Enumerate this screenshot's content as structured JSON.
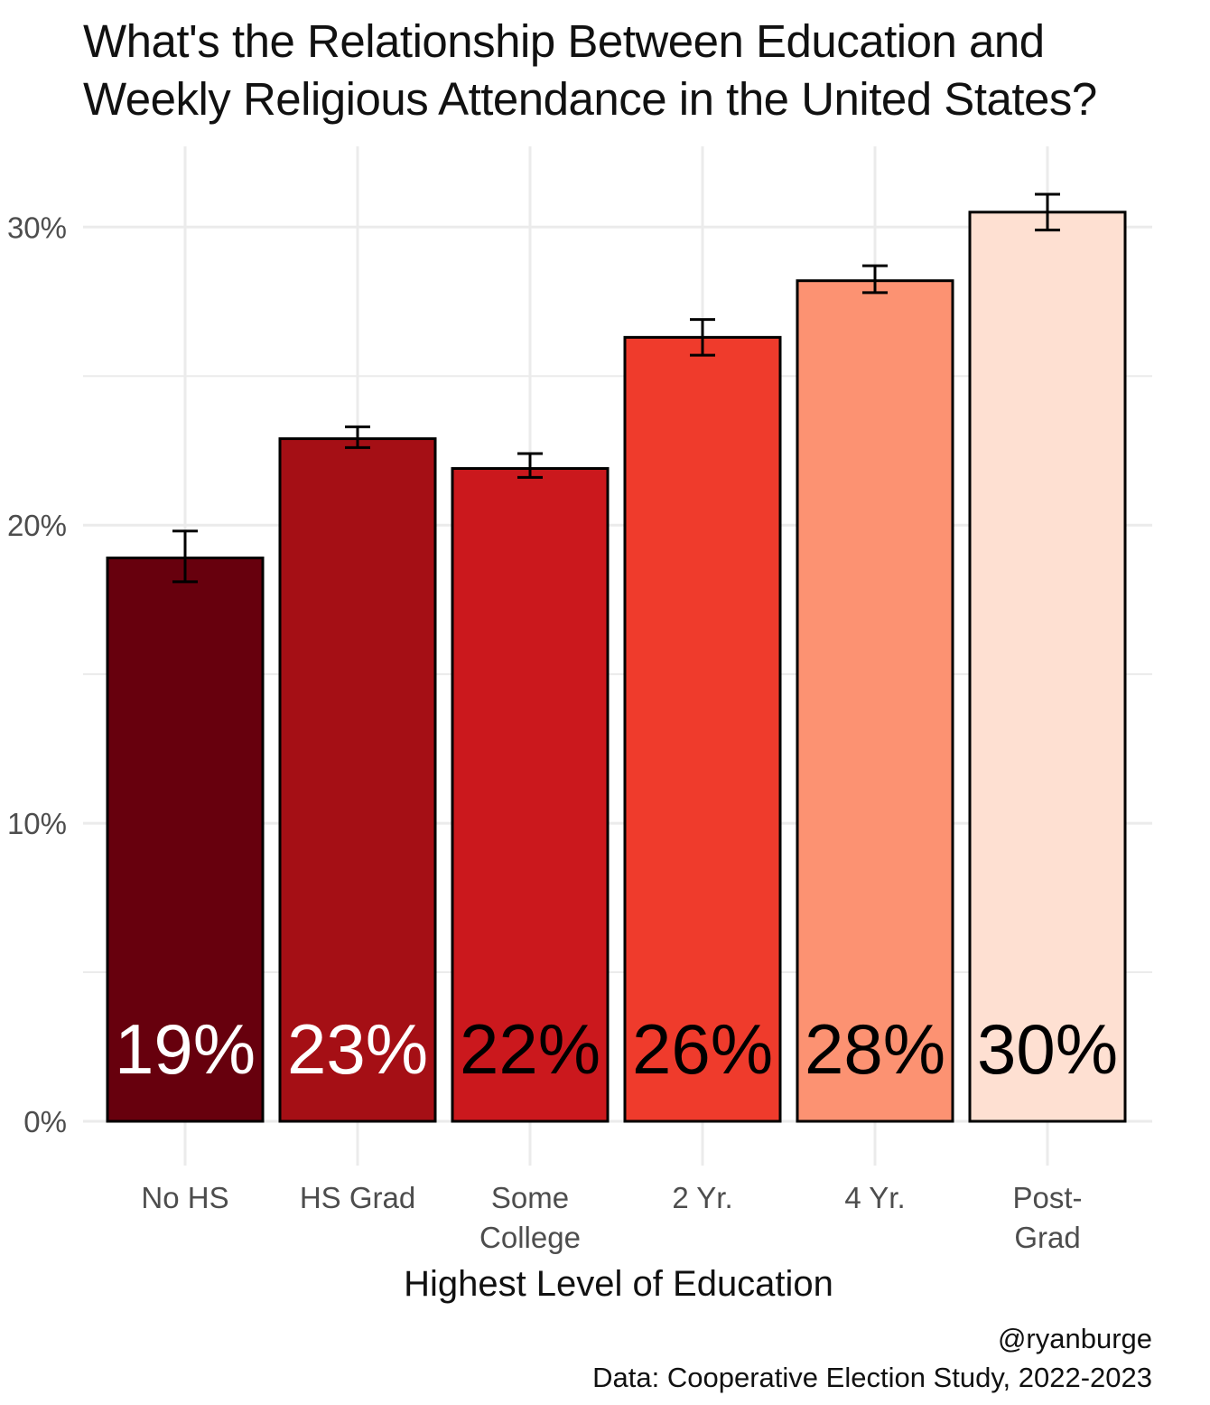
{
  "chart_data": {
    "type": "bar",
    "title_lines": [
      "What's the Relationship Between Education and",
      "Weekly Religious Attendance in the United States?"
    ],
    "xlabel": "Highest Level of Education",
    "ylabel": "",
    "categories": [
      [
        "No HS"
      ],
      [
        "HS Grad"
      ],
      [
        "Some",
        "College"
      ],
      [
        "2 Yr."
      ],
      [
        "4 Yr."
      ],
      [
        "Post-",
        "Grad"
      ]
    ],
    "values": [
      0.189,
      0.229,
      0.219,
      0.263,
      0.282,
      0.305
    ],
    "error_low": [
      0.181,
      0.226,
      0.216,
      0.257,
      0.278,
      0.299
    ],
    "error_high": [
      0.198,
      0.233,
      0.224,
      0.269,
      0.287,
      0.311
    ],
    "data_labels": [
      "19%",
      "23%",
      "22%",
      "26%",
      "28%",
      "30%"
    ],
    "bar_colors": [
      "#67000d",
      "#a50f15",
      "#cb181d",
      "#ef3b2c",
      "#fc9272",
      "#fee0d2"
    ],
    "label_colors": [
      "#ffffff",
      "#ffffff",
      "#000000",
      "#000000",
      "#000000",
      "#000000"
    ],
    "yticks": [
      0,
      0.1,
      0.2,
      0.3
    ],
    "ytick_labels": [
      "0%",
      "10%",
      "20%",
      "30%"
    ],
    "ylim": [
      0,
      0.32
    ],
    "grid": true,
    "legend": "none",
    "caption_lines": [
      "@ryanburge",
      "Data: Cooperative Election Study, 2022-2023"
    ]
  }
}
